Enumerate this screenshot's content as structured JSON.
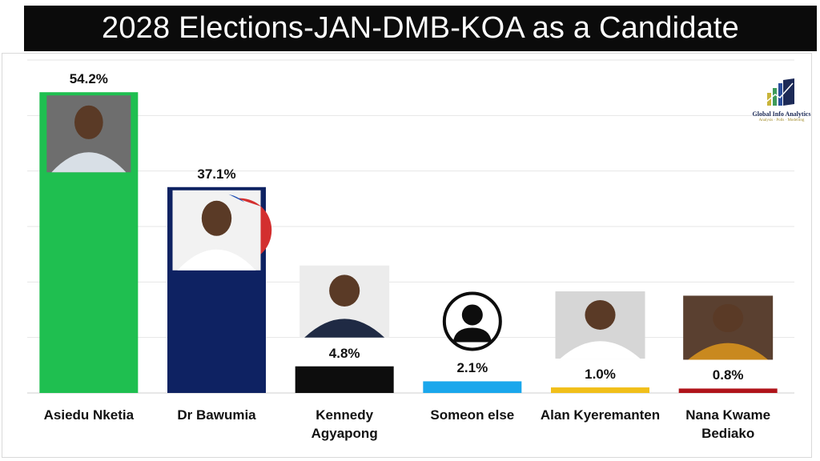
{
  "chart_data": {
    "type": "bar",
    "title": "2028 Elections-JAN-DMB-KOA as a Candidate",
    "categories": [
      "Asiedu Nketia",
      "Dr Bawumia",
      "Kennedy Agyapong",
      "Someon else",
      "Alan Kyeremanten",
      "Nana Kwame Bediako"
    ],
    "values": [
      54.2,
      37.1,
      4.8,
      2.1,
      1.0,
      0.8
    ],
    "value_labels": [
      "54.2%",
      "37.1%",
      "4.8%",
      "2.1%",
      "1.0%",
      "0.8%"
    ],
    "colors": [
      "#1fbf50",
      "#0e2262",
      "#0d0d0d",
      "#1aa7ec",
      "#f1bf1a",
      "#b0141a"
    ],
    "xlabel": "",
    "ylabel": "",
    "ylim": [
      0,
      60
    ],
    "grid": true,
    "legend": "none"
  },
  "logo": {
    "name": "Global Info Analytics",
    "tagline": "Analysis · Polls · Modelling",
    "icon": "bar-growth-logo-icon"
  },
  "photo_icons": [
    "asiedu-nketia-photo",
    "bawumia-photo",
    "kennedy-agyapong-photo",
    "person-silhouette-icon",
    "alan-kyeremanten-photo",
    "nana-kwame-bediako-photo"
  ]
}
